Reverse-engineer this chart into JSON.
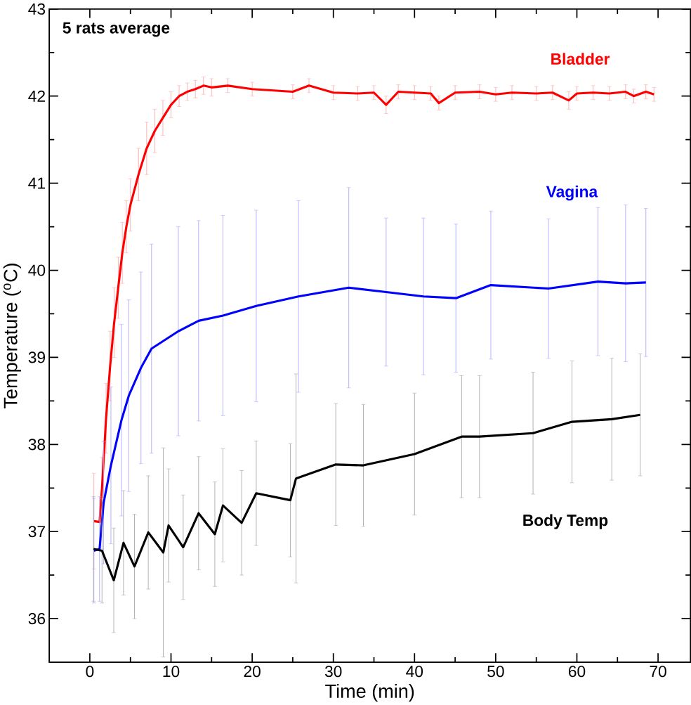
{
  "chart_data": {
    "type": "line",
    "xlabel": "Time (min)",
    "ylabel": "Temperature ($^{o}$C)",
    "annotations": [
      "5 rats average"
    ],
    "xlim": [
      -5,
      74
    ],
    "ylim": [
      35.5,
      43
    ],
    "xticks": [
      0,
      10,
      20,
      30,
      40,
      50,
      60,
      70
    ],
    "yticks": [
      36,
      37,
      38,
      39,
      40,
      41,
      42,
      43
    ],
    "series": [
      {
        "name": "Bladder",
        "color": "#ff0000",
        "x": [
          0.5,
          1.2,
          1.5,
          2,
          2.5,
          3,
          3.5,
          4,
          4.5,
          5,
          6,
          7,
          8,
          9,
          10,
          11,
          12,
          13,
          14,
          15,
          17,
          20,
          25,
          27,
          30,
          33,
          35,
          36.5,
          38,
          40,
          42,
          43,
          45,
          48,
          50,
          52,
          55,
          57,
          59,
          60,
          62,
          64,
          66,
          67,
          68.5,
          69.5
        ],
        "values": [
          37.12,
          37.11,
          37.5,
          38.3,
          38.9,
          39.4,
          39.8,
          40.2,
          40.5,
          40.75,
          41.1,
          41.4,
          41.6,
          41.75,
          41.9,
          42.0,
          42.05,
          42.08,
          42.12,
          42.1,
          42.12,
          42.08,
          42.05,
          42.12,
          42.04,
          42.03,
          42.04,
          41.9,
          42.05,
          42.04,
          42.03,
          41.92,
          42.04,
          42.05,
          42.02,
          42.04,
          42.03,
          42.04,
          41.95,
          42.03,
          42.04,
          42.03,
          42.05,
          42.0,
          42.05,
          42.02
        ],
        "errors": [
          0.55,
          null,
          0.35,
          0.4,
          0.4,
          0.4,
          0.35,
          0.35,
          0.3,
          0.3,
          0.3,
          0.3,
          0.25,
          0.2,
          0.15,
          0.12,
          0.1,
          0.1,
          0.1,
          0.1,
          0.08,
          0.08,
          0.08,
          0.08,
          0.08,
          0.08,
          0.08,
          0.1,
          0.08,
          0.08,
          0.08,
          0.08,
          0.08,
          0.08,
          0.08,
          0.08,
          0.08,
          0.08,
          0.1,
          0.08,
          0.08,
          0.08,
          0.08,
          0.08,
          0.08,
          0.08
        ]
      },
      {
        "name": "Vagina",
        "color": "#0000ff",
        "x": [
          0.5,
          1.2,
          1.7,
          2.6,
          3.9,
          4.8,
          6.3,
          7.6,
          10.9,
          13.4,
          16.4,
          20.5,
          25.7,
          31.9,
          36.5,
          41.1,
          45.1,
          49.4,
          56.5,
          62.6,
          66,
          68.5
        ],
        "values": [
          36.78,
          36.8,
          37.33,
          37.76,
          38.28,
          38.56,
          38.88,
          39.1,
          39.3,
          39.42,
          39.48,
          39.59,
          39.7,
          39.8,
          39.75,
          39.7,
          39.68,
          39.83,
          39.79,
          39.87,
          39.85,
          39.86
        ],
        "errors": [
          0.6,
          0.6,
          0.7,
          0.9,
          1.1,
          1.1,
          1.1,
          1.2,
          1.2,
          1.15,
          1.15,
          1.1,
          1.1,
          1.15,
          0.85,
          0.9,
          0.85,
          0.85,
          0.8,
          0.85,
          0.9,
          0.85
        ]
      },
      {
        "name": "Body Temp",
        "color": "#000000",
        "x": [
          0.46,
          1.5,
          2.95,
          4.15,
          5.5,
          7.2,
          9.05,
          9.7,
          11.5,
          13.4,
          15.4,
          16.4,
          18.7,
          20.5,
          24.7,
          25.4,
          30.3,
          33.7,
          40,
          45.8,
          48,
          54.6,
          59.4,
          64.3,
          67.8
        ],
        "values": [
          36.8,
          36.78,
          36.44,
          36.87,
          36.6,
          36.99,
          36.76,
          37.07,
          36.82,
          37.21,
          36.97,
          37.3,
          37.1,
          37.44,
          37.36,
          37.61,
          37.77,
          37.76,
          37.89,
          38.09,
          38.09,
          38.13,
          38.26,
          38.29,
          38.34
        ],
        "errors": [
          0.6,
          0.6,
          0.6,
          0.6,
          0.6,
          0.65,
          1.2,
          0.65,
          0.6,
          0.65,
          0.6,
          0.65,
          0.6,
          0.6,
          0.65,
          1.2,
          0.7,
          0.7,
          0.7,
          0.7,
          0.7,
          0.7,
          0.7,
          0.7,
          0.7
        ]
      }
    ]
  }
}
